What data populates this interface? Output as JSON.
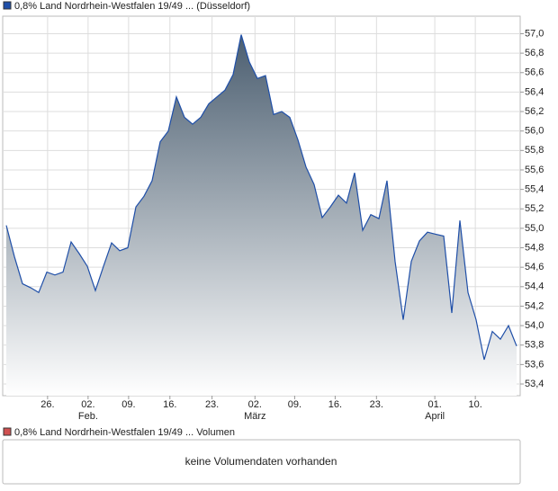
{
  "chart_data": {
    "type": "area",
    "title": "0,8% Land Nordrhein-Westfalen 19/49 ... (Düsseldorf)",
    "values": [
      55.03,
      54.71,
      54.43,
      54.39,
      54.34,
      54.55,
      54.52,
      54.55,
      54.86,
      54.74,
      54.61,
      54.36,
      54.61,
      54.85,
      54.77,
      54.8,
      55.22,
      55.33,
      55.49,
      55.89,
      56.0,
      56.35,
      56.14,
      56.07,
      56.14,
      56.28,
      56.35,
      56.42,
      56.58,
      56.99,
      56.71,
      56.54,
      56.57,
      56.17,
      56.2,
      56.14,
      55.91,
      55.63,
      55.45,
      55.11,
      55.22,
      55.34,
      55.26,
      55.57,
      54.98,
      55.14,
      55.1,
      55.49,
      54.66,
      54.06,
      54.66,
      54.87,
      54.96,
      54.94,
      54.92,
      54.13,
      55.08,
      54.34,
      54.06,
      53.65,
      53.94,
      53.86,
      54.0,
      53.79
    ],
    "color": "#1f4fa8",
    "fill_top": "#4b5e70",
    "fill_bottom": "#ffffff",
    "xlim": [
      -0.44,
      63.44
    ],
    "ylim": [
      53.28,
      57.18
    ],
    "yticks": [
      {
        "value": 53.4,
        "label": "53,4"
      },
      {
        "value": 53.6,
        "label": "53,6"
      },
      {
        "value": 53.8,
        "label": "53,8"
      },
      {
        "value": 54.0,
        "label": "54,0"
      },
      {
        "value": 54.2,
        "label": "54,2"
      },
      {
        "value": 54.4,
        "label": "54,4"
      },
      {
        "value": 54.6,
        "label": "54,6"
      },
      {
        "value": 54.8,
        "label": "54,8"
      },
      {
        "value": 55.0,
        "label": "55,0"
      },
      {
        "value": 55.2,
        "label": "55,2"
      },
      {
        "value": 55.4,
        "label": "55,4"
      },
      {
        "value": 55.6,
        "label": "55,6"
      },
      {
        "value": 55.8,
        "label": "55,8"
      },
      {
        "value": 56.0,
        "label": "56,0"
      },
      {
        "value": 56.2,
        "label": "56,2"
      },
      {
        "value": 56.4,
        "label": "56,4"
      },
      {
        "value": 56.6,
        "label": "56,6"
      },
      {
        "value": 56.8,
        "label": "56,8"
      },
      {
        "value": 57.0,
        "label": "57,0"
      }
    ],
    "xticks": [
      {
        "value": 5.1,
        "label": "26."
      },
      {
        "value": 10.1,
        "label": "02."
      },
      {
        "value": 15.1,
        "label": "09."
      },
      {
        "value": 20.2,
        "label": "16."
      },
      {
        "value": 25.4,
        "label": "23."
      },
      {
        "value": 30.7,
        "label": "02."
      },
      {
        "value": 35.6,
        "label": "09."
      },
      {
        "value": 40.6,
        "label": "16."
      },
      {
        "value": 45.7,
        "label": "23."
      },
      {
        "value": 52.9,
        "label": "01."
      },
      {
        "value": 57.9,
        "label": "10."
      }
    ],
    "month_ticks": [
      {
        "value": 10.1,
        "label": "Feb."
      },
      {
        "value": 30.7,
        "label": "März"
      },
      {
        "value": 52.9,
        "label": "April"
      }
    ],
    "grid": true
  },
  "volume_panel": {
    "title": "0,8% Land Nordrhein-Westfalen 19/49 ... Volumen",
    "message": "keine Volumendaten vorhanden",
    "color": "#d05050"
  }
}
